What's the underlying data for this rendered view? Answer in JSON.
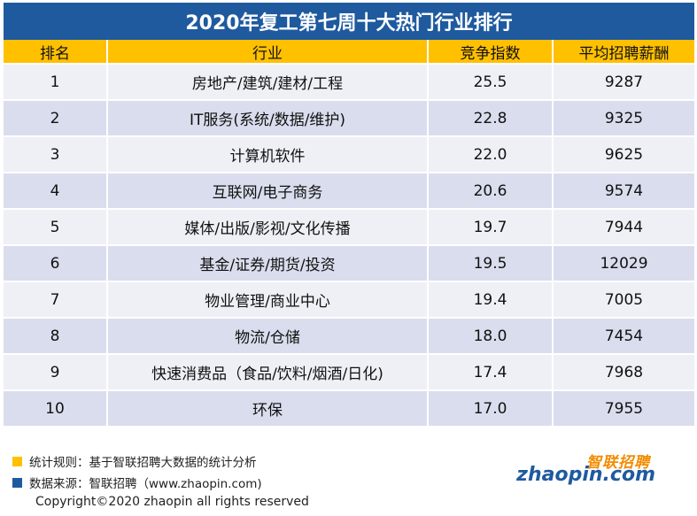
{
  "title": "2020年复工第七周十大热门行业排行",
  "colors": {
    "title_bg": "#1f5a9f",
    "header_bg": "#ffc000",
    "row_light": "#eef0f6",
    "row_dark": "#d9dded",
    "legend_rule": "#ffc000",
    "legend_source": "#1f5a9f",
    "logo_orange": "#f28c00",
    "logo_blue": "#1f5a9f"
  },
  "table": {
    "headers": [
      "排名",
      "行业",
      "竞争指数",
      "平均招聘薪酬"
    ],
    "rows": [
      {
        "rank": "1",
        "industry": "房地产/建筑/建材/工程",
        "competition": "25.5",
        "salary": "9287"
      },
      {
        "rank": "2",
        "industry": "IT服务(系统/数据/维护)",
        "competition": "22.8",
        "salary": "9325"
      },
      {
        "rank": "3",
        "industry": "计算机软件",
        "competition": "22.0",
        "salary": "9625"
      },
      {
        "rank": "4",
        "industry": "互联网/电子商务",
        "competition": "20.6",
        "salary": "9574"
      },
      {
        "rank": "5",
        "industry": "媒体/出版/影视/文化传播",
        "competition": "19.7",
        "salary": "7944"
      },
      {
        "rank": "6",
        "industry": "基金/证券/期货/投资",
        "competition": "19.5",
        "salary": "12029"
      },
      {
        "rank": "7",
        "industry": "物业管理/商业中心",
        "competition": "19.4",
        "salary": "7005"
      },
      {
        "rank": "8",
        "industry": "物流/仓储",
        "competition": "18.0",
        "salary": "7454"
      },
      {
        "rank": "9",
        "industry": "快速消费品（食品/饮料/烟酒/日化)",
        "competition": "17.4",
        "salary": "7968"
      },
      {
        "rank": "10",
        "industry": "环保",
        "competition": "17.0",
        "salary": "7955"
      }
    ]
  },
  "legend": {
    "rule": "统计规则：基于智联招聘大数据的统计分析",
    "source": "数据来源：智联招聘（www.zhaopin.com)"
  },
  "copyright": "Copyright©2020 zhaopin all rights reserved",
  "logo": {
    "cn": "智联招聘",
    "en": "zhaopin.com"
  }
}
